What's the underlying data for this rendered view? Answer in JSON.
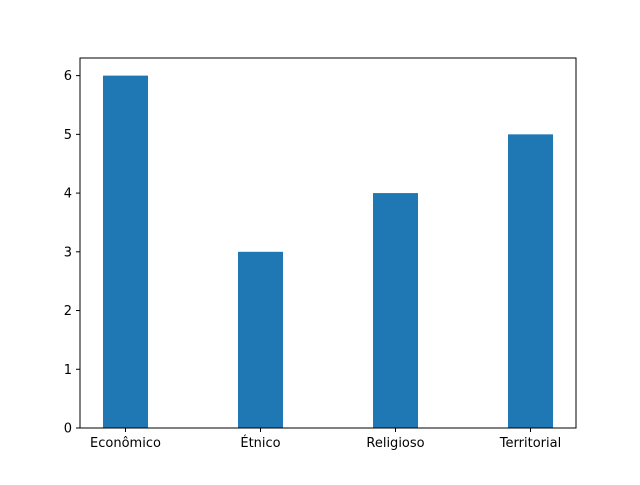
{
  "chart_data": {
    "type": "bar",
    "title": "",
    "xlabel": "",
    "ylabel": "",
    "categories": [
      "Econômico",
      "Étnico",
      "Religioso",
      "Territorial"
    ],
    "values": [
      6,
      3,
      4,
      5
    ],
    "ylim": [
      0,
      6.3
    ],
    "yticks": [
      0,
      1,
      2,
      3,
      4,
      5,
      6
    ],
    "grid": false,
    "legend": "none",
    "colors": {
      "bar": "#1f77b4",
      "axis": "#000000",
      "background": "#ffffff"
    }
  }
}
